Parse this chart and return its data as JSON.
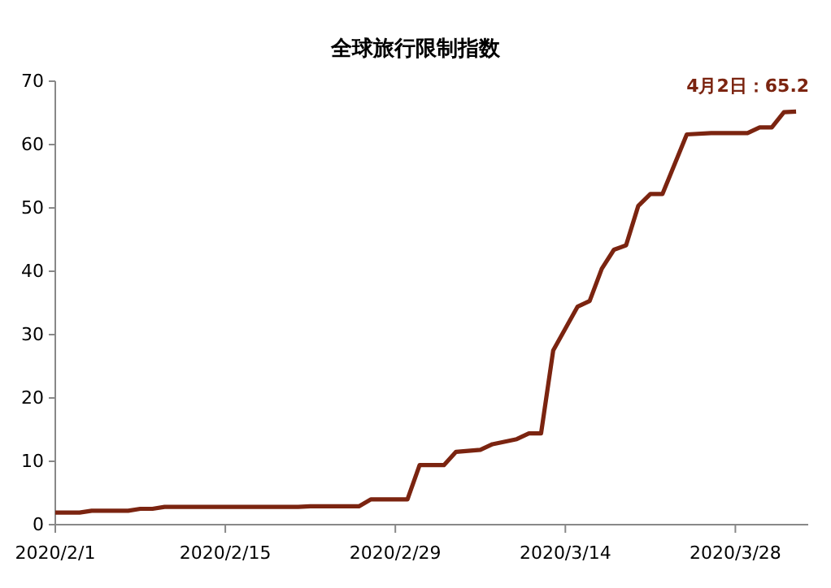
{
  "chart_data": {
    "type": "line",
    "title": "全球旅行限制指数",
    "x": [
      "2020-02-01",
      "2020-02-03",
      "2020-02-04",
      "2020-02-07",
      "2020-02-08",
      "2020-02-09",
      "2020-02-10",
      "2020-02-21",
      "2020-02-22",
      "2020-02-26",
      "2020-02-27",
      "2020-03-01",
      "2020-03-02",
      "2020-03-04",
      "2020-03-05",
      "2020-03-07",
      "2020-03-08",
      "2020-03-10",
      "2020-03-11",
      "2020-03-12",
      "2020-03-13",
      "2020-03-15",
      "2020-03-16",
      "2020-03-17",
      "2020-03-18",
      "2020-03-19",
      "2020-03-20",
      "2020-03-21",
      "2020-03-22",
      "2020-03-24",
      "2020-03-26",
      "2020-03-29",
      "2020-03-30",
      "2020-03-31",
      "2020-04-01",
      "2020-04-02"
    ],
    "series": [
      {
        "color": "#7b2410",
        "values": [
          1.9,
          1.9,
          2.2,
          2.2,
          2.5,
          2.5,
          2.8,
          2.8,
          2.9,
          2.9,
          4,
          4,
          9.4,
          9.4,
          11.5,
          11.8,
          12.7,
          13.5,
          14.4,
          14.4,
          27.5,
          34.4,
          35.3,
          40.4,
          43.4,
          44.1,
          50.3,
          52.2,
          52.2,
          61.6,
          61.8,
          61.8,
          62.7,
          62.7,
          65.1,
          65.2
        ]
      }
    ],
    "xlim": [
      "2020-02-01",
      "2020-04-03"
    ],
    "xticks": [
      {
        "value": "2020-02-01",
        "label": "2020/2/1"
      },
      {
        "value": "2020-02-15",
        "label": "2020/2/15"
      },
      {
        "value": "2020-02-29",
        "label": "2020/2/29"
      },
      {
        "value": "2020-03-14",
        "label": "2020/3/14"
      },
      {
        "value": "2020-03-28",
        "label": "2020/3/28"
      }
    ],
    "ylim": [
      0,
      70
    ],
    "yticks": [
      0,
      10,
      20,
      30,
      40,
      50,
      60,
      70
    ],
    "grid": false,
    "marker": "none",
    "line_style": "solid",
    "annotations": [
      {
        "text": "4月2日：65.2",
        "x": "2020-04-02",
        "y": 65.2
      }
    ]
  }
}
